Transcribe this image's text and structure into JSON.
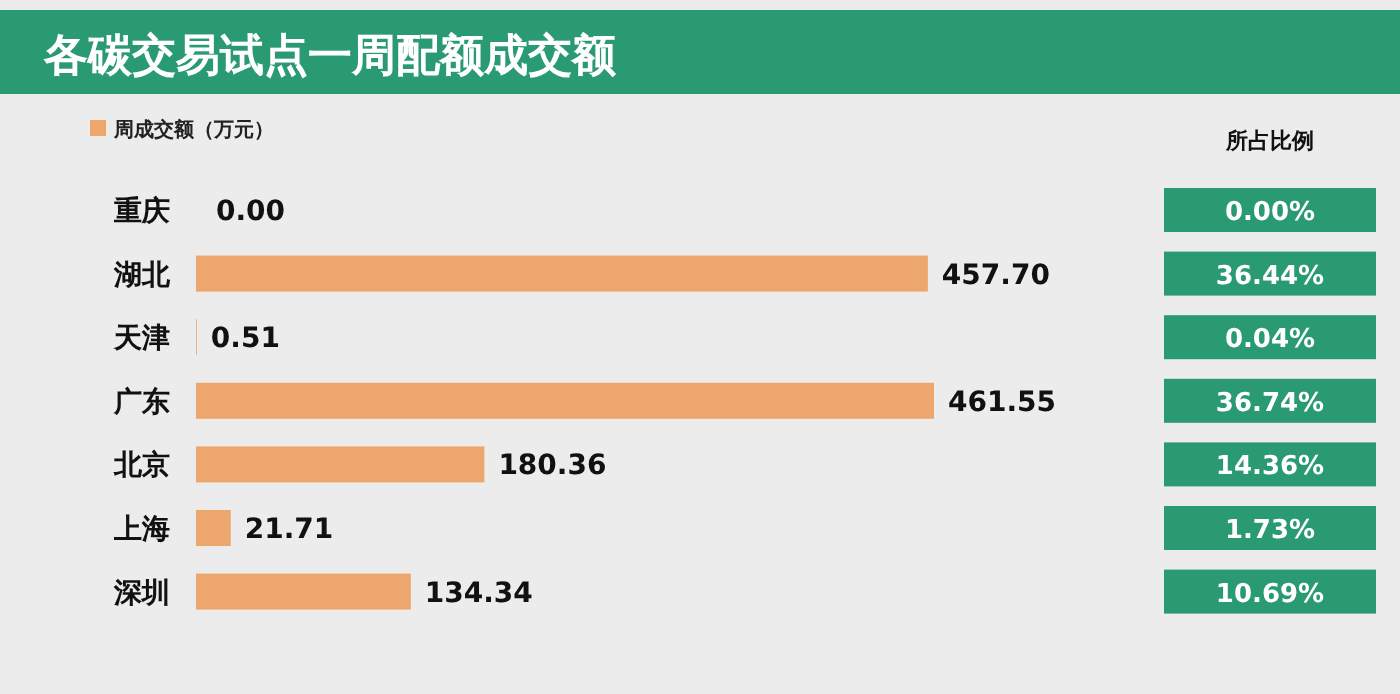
{
  "chart_data": [
    {
      "type": "bar",
      "orientation": "horizontal",
      "title": "各碳交易试点一周配额成交额",
      "categories": [
        "重庆",
        "湖北",
        "天津",
        "广东",
        "北京",
        "上海",
        "深圳"
      ],
      "series": [
        {
          "name": "周成交额（万元）",
          "color": "#eda66c",
          "values": [
            0,
            457.7,
            0.51,
            461.55,
            180.36,
            21.71,
            134.34
          ],
          "value_labels": [
            "0.00",
            "457.70",
            "0.51",
            "461.55",
            "180.36",
            "21.71",
            "134.34"
          ]
        }
      ],
      "legend": "top left"
    },
    {
      "type": "other",
      "title": "所占比例",
      "annotations": [
        "0.00%",
        "36.44%",
        "0.04%",
        "36.74%",
        "14.36%",
        "1.73%",
        "10.69%"
      ],
      "color": "#2a9a73"
    }
  ]
}
